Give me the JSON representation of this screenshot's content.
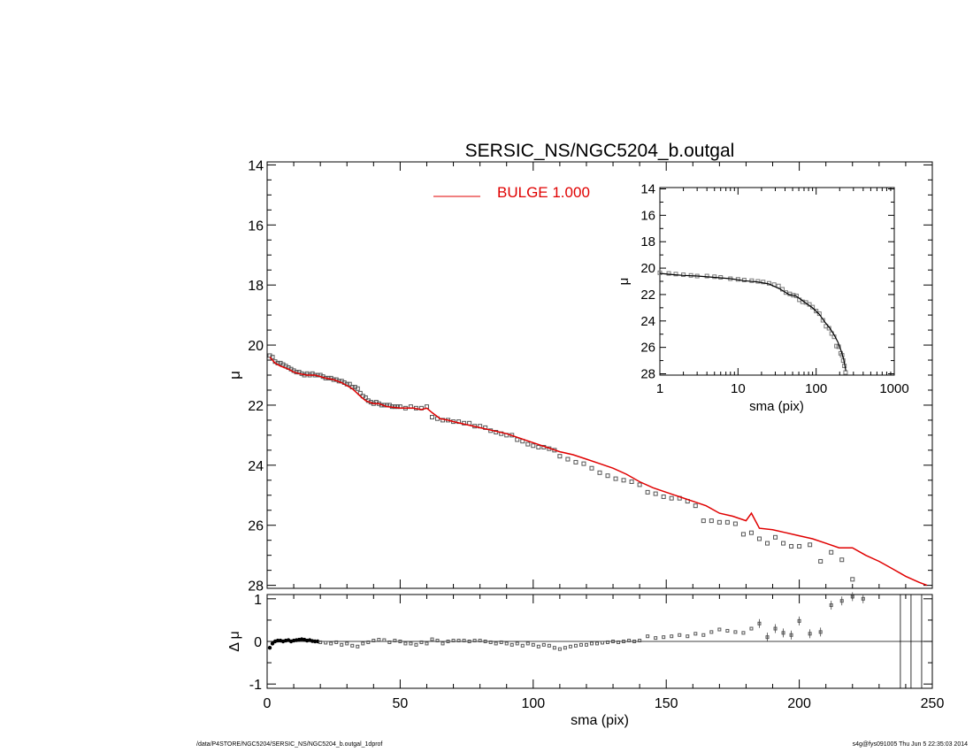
{
  "title": "SERSIC_NS/NGC5204_b.outgal",
  "legend": {
    "label": "BULGE  1.000",
    "color": "#e00000"
  },
  "footer": {
    "left": "/data/P4STORE/NGC5204/SERSIC_NS/NGC5204_b.outgal_1dprof",
    "right": "s4g@fys091005  Thu Jun  5 22:35:03 2014"
  },
  "chart_data": [
    {
      "id": "main",
      "type": "scatter",
      "xlabel": "",
      "ylabel": "μ",
      "xlim": [
        0,
        250
      ],
      "ylim": [
        28.1,
        13.9
      ],
      "y_reversed": true,
      "yticks": [
        "14",
        "16",
        "18",
        "20",
        "22",
        "24",
        "26",
        "28"
      ],
      "series": [
        {
          "name": "BULGE  1.000",
          "type": "line",
          "color": "#e00000",
          "x": [
            1,
            3,
            5,
            8,
            10,
            12,
            15,
            18,
            20,
            22,
            25,
            28,
            30,
            32,
            35,
            37,
            40,
            42,
            45,
            50,
            55,
            58,
            60,
            62,
            65,
            68,
            70,
            75,
            80,
            85,
            90,
            95,
            100,
            105,
            110,
            115,
            120,
            125,
            130,
            135,
            140,
            145,
            150,
            155,
            160,
            165,
            170,
            175,
            180,
            182,
            185,
            190,
            195,
            200,
            205,
            210,
            215,
            220,
            225,
            230,
            235,
            240,
            245,
            248
          ],
          "y": [
            20.4,
            20.6,
            20.7,
            20.8,
            20.9,
            20.95,
            21.0,
            21.0,
            21.05,
            21.1,
            21.15,
            21.25,
            21.35,
            21.45,
            21.7,
            21.85,
            21.95,
            21.95,
            22.05,
            22.1,
            22.1,
            22.15,
            22.1,
            22.25,
            22.45,
            22.5,
            22.55,
            22.65,
            22.75,
            22.85,
            22.95,
            23.1,
            23.25,
            23.4,
            23.55,
            23.65,
            23.8,
            23.95,
            24.1,
            24.3,
            24.55,
            24.75,
            24.9,
            25.05,
            25.2,
            25.35,
            25.6,
            25.7,
            25.85,
            25.6,
            26.1,
            26.15,
            26.25,
            26.35,
            26.45,
            26.6,
            26.75,
            26.75,
            27.0,
            27.2,
            27.45,
            27.7,
            27.9,
            28.0
          ]
        },
        {
          "name": "",
          "type": "points",
          "marker": "square",
          "x": [
            1,
            2,
            3,
            4,
            5,
            6,
            7,
            8,
            9,
            10,
            11,
            12,
            13,
            14,
            15,
            16,
            17,
            18,
            19,
            20,
            21,
            22,
            23,
            24,
            25,
            26,
            27,
            28,
            29,
            30,
            31,
            32,
            33,
            34,
            35,
            36,
            37,
            38,
            39,
            40,
            41,
            42,
            43,
            44,
            45,
            46,
            47,
            48,
            49,
            50,
            52,
            54,
            56,
            58,
            60,
            62,
            64,
            66,
            68,
            70,
            72,
            74,
            76,
            78,
            80,
            82,
            84,
            86,
            88,
            90,
            92,
            94,
            96,
            98,
            100,
            102,
            104,
            106,
            108,
            110,
            113,
            116,
            119,
            122,
            125,
            128,
            131,
            134,
            137,
            140,
            143,
            146,
            149,
            152,
            155,
            158,
            161,
            164,
            167,
            170,
            173,
            176,
            179,
            182,
            185,
            188,
            191,
            194,
            197,
            200,
            204,
            208,
            212,
            216,
            220
          ],
          "y": [
            20.35,
            20.4,
            20.55,
            20.6,
            20.6,
            20.65,
            20.7,
            20.75,
            20.8,
            20.85,
            20.9,
            20.9,
            20.95,
            21.0,
            20.95,
            21.0,
            20.95,
            21.0,
            21.0,
            21.0,
            21.05,
            21.1,
            21.1,
            21.1,
            21.15,
            21.15,
            21.2,
            21.2,
            21.25,
            21.3,
            21.3,
            21.4,
            21.4,
            21.45,
            21.6,
            21.7,
            21.75,
            21.85,
            21.9,
            21.95,
            21.9,
            21.95,
            22.0,
            22.0,
            22.0,
            22.0,
            22.05,
            22.05,
            22.05,
            22.05,
            22.1,
            22.05,
            22.1,
            22.1,
            22.05,
            22.4,
            22.45,
            22.5,
            22.5,
            22.55,
            22.55,
            22.6,
            22.6,
            22.7,
            22.7,
            22.75,
            22.85,
            22.9,
            22.95,
            23.0,
            23.0,
            23.15,
            23.2,
            23.3,
            23.35,
            23.4,
            23.4,
            23.45,
            23.5,
            23.7,
            23.8,
            23.9,
            23.95,
            24.1,
            24.25,
            24.35,
            24.45,
            24.5,
            24.55,
            24.65,
            24.9,
            24.95,
            25.05,
            25.1,
            25.1,
            25.2,
            25.35,
            25.85,
            25.85,
            25.9,
            25.9,
            25.95,
            26.3,
            26.25,
            26.45,
            26.6,
            26.4,
            26.6,
            26.7,
            26.7,
            26.65,
            27.2,
            26.9,
            27.15,
            27.8
          ]
        }
      ]
    },
    {
      "id": "inset",
      "type": "scatter",
      "xlabel": "sma (pix)",
      "ylabel": "μ",
      "xscale": "log",
      "xlim": [
        1,
        1000
      ],
      "ylim": [
        28.1,
        13.9
      ],
      "y_reversed": true,
      "xticks": [
        "1",
        "10",
        "100",
        "1000"
      ],
      "yticks": [
        "14",
        "16",
        "18",
        "20",
        "22",
        "24",
        "26",
        "28"
      ],
      "series": [
        {
          "name": "",
          "type": "line",
          "color": "#000000",
          "x": [
            1,
            1.5,
            2,
            3,
            5,
            8,
            12,
            18,
            25,
            35,
            45,
            55,
            70,
            90,
            110,
            130,
            150,
            170,
            190,
            210,
            225,
            240
          ],
          "y": [
            20.4,
            20.5,
            20.55,
            20.6,
            20.7,
            20.8,
            20.95,
            21.05,
            21.2,
            21.6,
            22.0,
            22.1,
            22.55,
            23.0,
            23.5,
            24.1,
            24.55,
            25.05,
            25.6,
            26.3,
            26.9,
            27.8
          ]
        },
        {
          "name": "",
          "type": "points",
          "marker": "square",
          "x": [
            1,
            1.3,
            1.6,
            2,
            2.5,
            3,
            4,
            5,
            6,
            8,
            10,
            12,
            15,
            18,
            21,
            25,
            29,
            33,
            37,
            41,
            46,
            51,
            56,
            61,
            67,
            74,
            82,
            90,
            100,
            110,
            122,
            134,
            146,
            158,
            170,
            182,
            194,
            206,
            215,
            222,
            230,
            238
          ],
          "y": [
            20.35,
            20.4,
            20.45,
            20.5,
            20.55,
            20.6,
            20.6,
            20.65,
            20.7,
            20.8,
            20.85,
            20.9,
            20.95,
            21.0,
            21.05,
            21.15,
            21.25,
            21.35,
            21.6,
            21.85,
            21.95,
            22.05,
            22.1,
            22.4,
            22.55,
            22.6,
            22.75,
            22.95,
            23.25,
            23.45,
            23.95,
            24.4,
            24.55,
            24.95,
            25.2,
            25.9,
            25.95,
            26.45,
            26.6,
            27.0,
            27.4,
            27.9
          ]
        }
      ]
    },
    {
      "id": "residual",
      "type": "scatter",
      "xlabel": "sma (pix)",
      "ylabel": "Δ μ",
      "xlim": [
        0,
        250
      ],
      "ylim": [
        -1.1,
        1.1
      ],
      "xticks": [
        "0",
        "50",
        "100",
        "150",
        "200",
        "250"
      ],
      "yticks": [
        "1",
        "0",
        "-1"
      ],
      "series": [
        {
          "name": "",
          "type": "points",
          "marker": "square",
          "x": [
            1,
            2,
            3,
            4,
            5,
            6,
            7,
            8,
            9,
            10,
            11,
            12,
            13,
            14,
            15,
            16,
            17,
            18,
            19,
            20,
            22,
            24,
            26,
            28,
            30,
            32,
            34,
            36,
            38,
            40,
            42,
            44,
            46,
            48,
            50,
            52,
            54,
            56,
            58,
            60,
            62,
            64,
            66,
            68,
            70,
            72,
            74,
            76,
            78,
            80,
            82,
            84,
            86,
            88,
            90,
            92,
            94,
            96,
            98,
            100,
            102,
            104,
            106,
            108,
            110,
            112,
            114,
            116,
            118,
            120,
            122,
            124,
            126,
            128,
            130,
            132,
            134,
            136,
            138,
            140,
            143,
            146,
            149,
            152,
            155,
            158,
            161,
            164,
            167,
            170,
            173,
            176,
            179,
            182,
            185,
            188,
            191,
            194,
            197,
            200,
            204,
            208,
            212,
            216,
            220,
            224,
            228
          ],
          "y": [
            -0.15,
            -0.05,
            0.0,
            0.02,
            0.02,
            0.0,
            0.02,
            0.03,
            0.0,
            0.02,
            0.03,
            0.04,
            0.05,
            0.04,
            0.02,
            0.03,
            0.01,
            0.0,
            0.0,
            -0.02,
            -0.03,
            -0.05,
            -0.02,
            -0.08,
            -0.05,
            -0.1,
            -0.12,
            -0.05,
            -0.02,
            0.02,
            0.04,
            0.03,
            -0.02,
            0.02,
            0.0,
            -0.05,
            -0.05,
            -0.08,
            -0.02,
            -0.05,
            0.05,
            0.02,
            -0.05,
            0.0,
            0.02,
            0.02,
            0.02,
            0.0,
            0.02,
            0.02,
            0.0,
            -0.02,
            -0.05,
            -0.02,
            -0.05,
            -0.08,
            -0.05,
            -0.1,
            -0.05,
            -0.08,
            -0.12,
            -0.08,
            -0.1,
            -0.15,
            -0.18,
            -0.15,
            -0.12,
            -0.1,
            -0.08,
            -0.08,
            -0.05,
            -0.05,
            -0.03,
            -0.02,
            0.0,
            -0.02,
            0.0,
            0.02,
            0.0,
            0.02,
            0.12,
            0.08,
            0.1,
            0.12,
            0.15,
            0.12,
            0.18,
            0.15,
            0.22,
            0.28,
            0.25,
            0.22,
            0.2,
            0.3,
            0.42,
            0.1,
            0.3,
            0.2,
            0.15,
            0.48,
            0.18,
            0.22,
            0.85,
            0.95,
            1.05,
            1.0,
            1.1
          ]
        }
      ],
      "vlines": [
        238,
        242,
        246
      ]
    }
  ]
}
